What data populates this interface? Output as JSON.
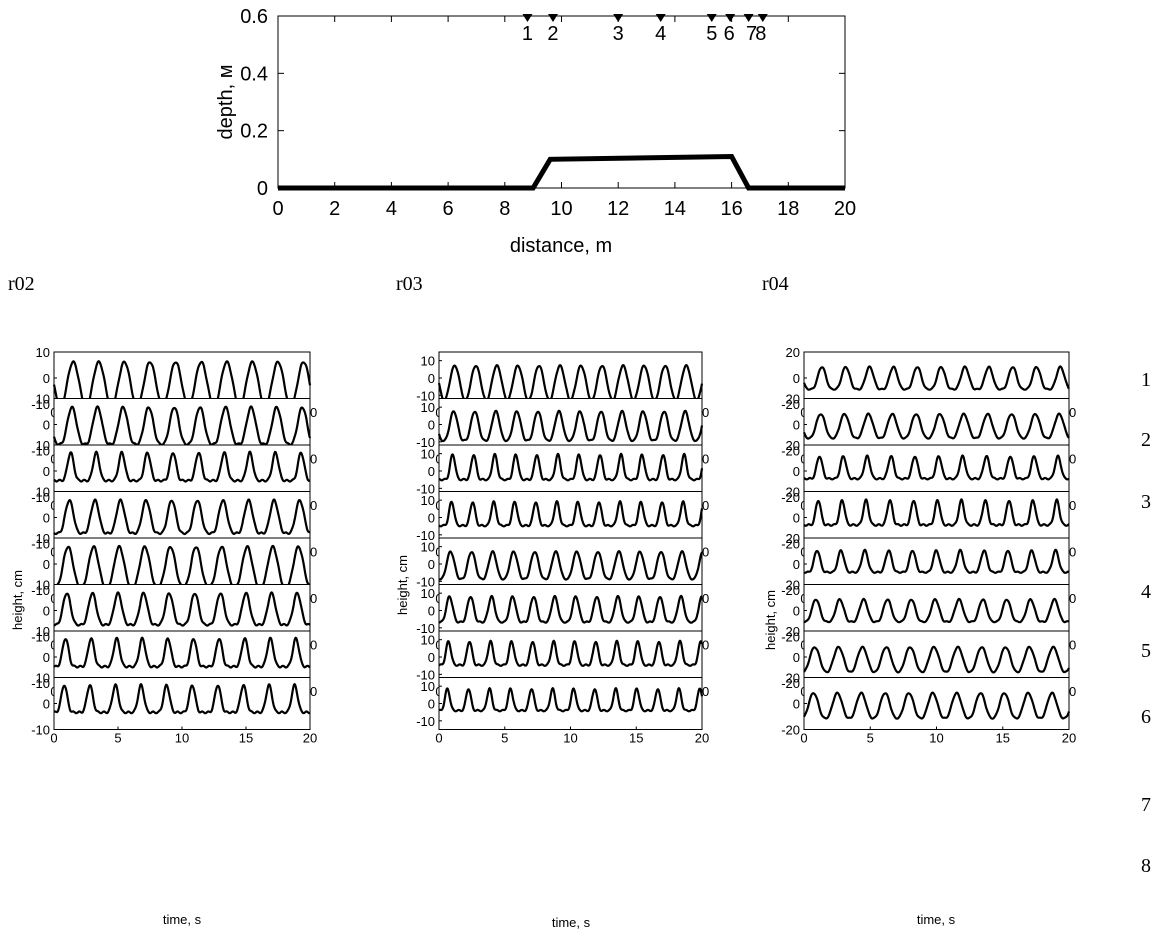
{
  "chart_data": [
    {
      "type": "line",
      "title": "",
      "xlabel": "distance, m",
      "ylabel": "depth, м",
      "xlim": [
        0,
        20
      ],
      "ylim": [
        0,
        0.6
      ],
      "xticks": [
        0,
        2,
        4,
        6,
        8,
        10,
        12,
        14,
        16,
        18,
        20
      ],
      "yticks": [
        0,
        0.2,
        0.4,
        0.6
      ],
      "series": [
        {
          "x": [
            0,
            9.0,
            9.6,
            16.0,
            16.6,
            20
          ],
          "y": [
            0,
            0,
            0.1,
            0.11,
            0,
            0
          ]
        }
      ],
      "gauges": [
        {
          "label": "1",
          "x": 8.8
        },
        {
          "label": "2",
          "x": 9.7
        },
        {
          "label": "3",
          "x": 12.0
        },
        {
          "label": "4",
          "x": 13.5
        },
        {
          "label": "5",
          "x": 15.3
        },
        {
          "label": "6",
          "x": 15.95
        },
        {
          "label": "7",
          "x": 16.6
        },
        {
          "label": "8",
          "x": 17.1
        }
      ],
      "grid": false
    },
    {
      "type": "line",
      "title": "r02",
      "xlabel": "time, s",
      "ylabel": "height, cm",
      "xlim": [
        0,
        20
      ],
      "ylim": [
        -10,
        10
      ],
      "xticks": [
        0,
        5,
        10,
        15,
        20
      ],
      "yticks": [
        -10,
        0,
        10
      ],
      "series": [
        {
          "name": "1",
          "period": 2.0,
          "amplitude": 6.5,
          "peak": 1.0,
          "phase": 0.25
        },
        {
          "name": "2",
          "period": 2.0,
          "amplitude": 7.0,
          "peak": 1.6,
          "phase": 0.3
        },
        {
          "name": "3",
          "period": 2.0,
          "amplitude": 7.5,
          "peak": 3.5,
          "phase": 0.35
        },
        {
          "name": "4",
          "period": 2.0,
          "amplitude": 7.0,
          "peak": 2.0,
          "phase": 0.4
        },
        {
          "name": "5",
          "period": 2.0,
          "amplitude": 7.0,
          "peak": 1.4,
          "phase": 0.45
        },
        {
          "name": "6",
          "period": 2.0,
          "amplitude": 7.0,
          "peak": 2.2,
          "phase": 0.5
        },
        {
          "name": "7",
          "period": 2.0,
          "amplitude": 7.5,
          "peak": 3.5,
          "phase": 0.55
        },
        {
          "name": "8",
          "period": 2.0,
          "amplitude": 7.5,
          "peak": 3.8,
          "phase": 0.6
        }
      ]
    },
    {
      "type": "line",
      "title": "r03",
      "xlabel": "time, s",
      "ylabel": "height, cm",
      "xlim": [
        0,
        20
      ],
      "ylim": [
        -15,
        15
      ],
      "xticks": [
        0,
        5,
        10,
        15,
        20
      ],
      "yticks": [
        -10,
        0,
        10
      ],
      "series": [
        {
          "name": "1",
          "period": 1.6,
          "amplitude": 7.5,
          "peak": 1.0,
          "phase": 0.25
        },
        {
          "name": "2",
          "period": 1.6,
          "amplitude": 8.0,
          "peak": 1.5,
          "phase": 0.3
        },
        {
          "name": "3",
          "period": 1.6,
          "amplitude": 10.0,
          "peak": 3.5,
          "phase": 0.35
        },
        {
          "name": "4",
          "period": 1.6,
          "amplitude": 9.5,
          "peak": 3.5,
          "phase": 0.4
        },
        {
          "name": "5",
          "period": 1.6,
          "amplitude": 7.5,
          "peak": 1.5,
          "phase": 0.45
        },
        {
          "name": "6",
          "period": 1.6,
          "amplitude": 8.5,
          "peak": 2.2,
          "phase": 0.5
        },
        {
          "name": "7",
          "period": 1.6,
          "amplitude": 9.5,
          "peak": 3.5,
          "phase": 0.55
        },
        {
          "name": "8",
          "period": 1.6,
          "amplitude": 9.0,
          "peak": 3.8,
          "phase": 0.6
        }
      ]
    },
    {
      "type": "line",
      "title": "r04",
      "xlabel": "time, s",
      "ylabel": "height, cm",
      "xlim": [
        0,
        20
      ],
      "ylim": [
        -20,
        20
      ],
      "xticks": [
        0,
        5,
        10,
        15,
        20
      ],
      "yticks": [
        -20,
        0,
        20
      ],
      "series": [
        {
          "name": "1",
          "period": 1.8,
          "amplitude": 9.0,
          "peak": 1.8,
          "phase": 0.25
        },
        {
          "name": "2",
          "period": 1.8,
          "amplitude": 8.5,
          "peak": 1.4,
          "phase": 0.3
        },
        {
          "name": "3",
          "period": 1.8,
          "amplitude": 12.0,
          "peak": 3.5,
          "phase": 0.35
        },
        {
          "name": "4",
          "period": 1.8,
          "amplitude": 14.0,
          "peak": 4.2,
          "phase": 0.4
        },
        {
          "name": "5",
          "period": 1.8,
          "amplitude": 11.0,
          "peak": 3.0,
          "phase": 0.45
        },
        {
          "name": "6",
          "period": 1.8,
          "amplitude": 9.0,
          "peak": 1.8,
          "phase": 0.5
        },
        {
          "name": "7",
          "period": 1.8,
          "amplitude": 8.0,
          "peak": 1.2,
          "phase": 0.55
        },
        {
          "name": "8",
          "period": 1.8,
          "amplitude": 8.5,
          "peak": 1.3,
          "phase": 0.6
        }
      ]
    }
  ],
  "row_labels": [
    "1",
    "2",
    "3",
    "4",
    "5",
    "6",
    "7",
    "8"
  ]
}
